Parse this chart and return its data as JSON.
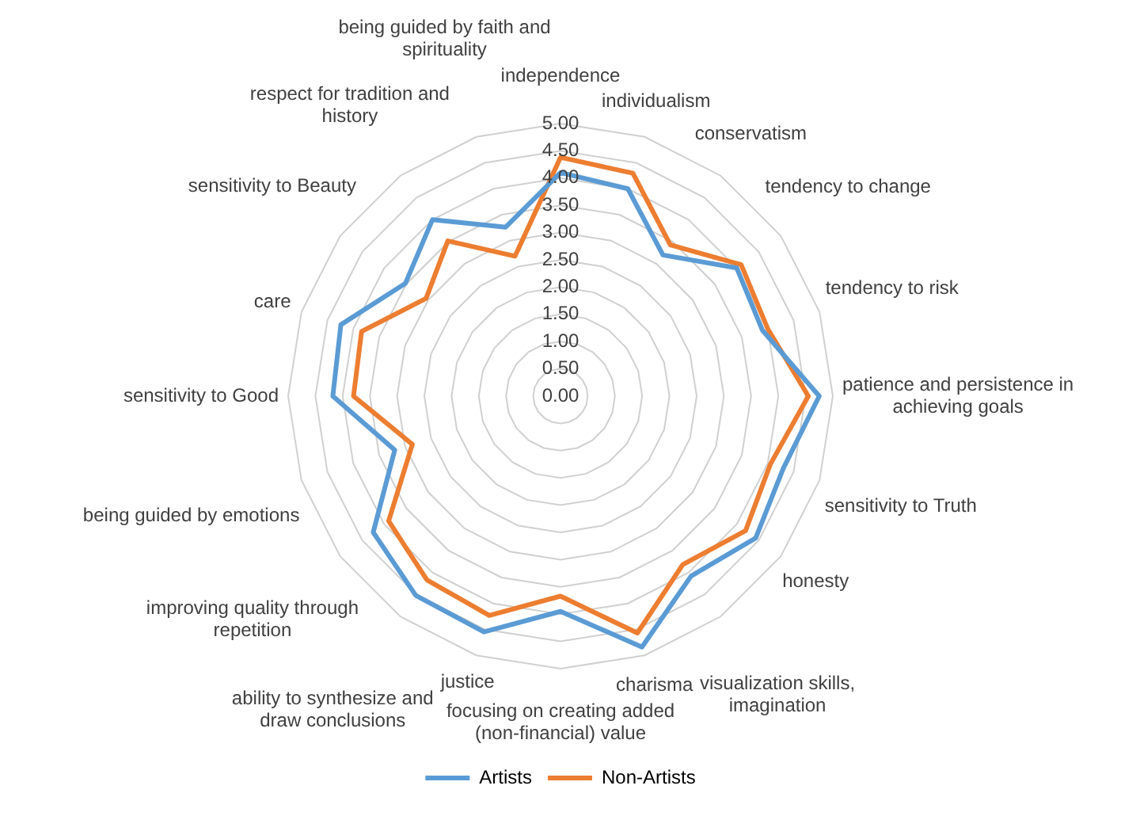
{
  "chart_data": {
    "type": "radar",
    "categories": [
      "independence",
      "individualism",
      "conservatism",
      "tendency to change",
      "tendency to risk",
      "patience and persistence in achieving goals",
      "sensitivity to Truth",
      "honesty",
      "visualization skills, imagination",
      "charisma",
      "focusing on creating added (non-financial) value",
      "justice",
      "ability to synthesize and draw conclusions",
      "improving quality through repetition",
      "being guided by emotions",
      "sensitivity to Good",
      "care",
      "sensitivity to Beauty",
      "respect for tradition and history",
      "being guided by faith and spirituality"
    ],
    "series": [
      {
        "name": "Artists",
        "color": "#5b9bd5",
        "values": [
          4.1,
          4.0,
          3.2,
          4.0,
          3.9,
          4.75,
          4.3,
          4.43,
          4.08,
          4.84,
          3.95,
          4.55,
          4.52,
          4.25,
          3.2,
          4.18,
          4.24,
          3.52,
          4.0,
          3.26
        ]
      },
      {
        "name": "Non-Artists",
        "color": "#ed7d31",
        "values": [
          4.38,
          4.3,
          3.43,
          4.1,
          4.0,
          4.55,
          4.05,
          4.2,
          3.82,
          4.57,
          3.67,
          4.23,
          4.17,
          3.9,
          2.86,
          3.8,
          3.84,
          3.05,
          3.52,
          2.7
        ]
      }
    ],
    "ylim": [
      0,
      5
    ],
    "yticks": [
      {
        "value": 0,
        "label": "0.00"
      },
      {
        "value": 0.5,
        "label": "0.50"
      },
      {
        "value": 1,
        "label": "1.00"
      },
      {
        "value": 1.5,
        "label": "1.50"
      },
      {
        "value": 2,
        "label": "2.00"
      },
      {
        "value": 2.5,
        "label": "2.50"
      },
      {
        "value": 3,
        "label": "3.00"
      },
      {
        "value": 3.5,
        "label": "3.50"
      },
      {
        "value": 4,
        "label": "4.00"
      },
      {
        "value": 4.5,
        "label": "4.50"
      },
      {
        "value": 5,
        "label": "5.00"
      }
    ],
    "grid": true,
    "legend": "bottom",
    "marker": "none",
    "line_style": "solid"
  }
}
